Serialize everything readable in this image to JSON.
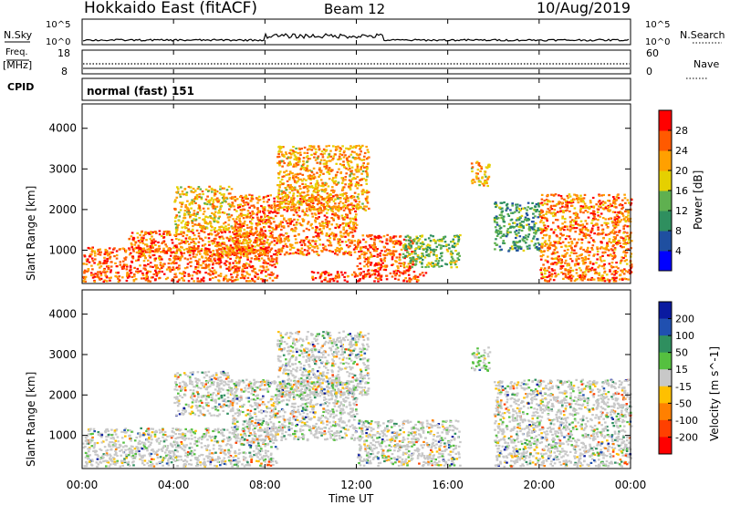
{
  "header": {
    "station": "Hokkaido East (fitACF)",
    "beam": "Beam 12",
    "date": "10/Aug/2019"
  },
  "info": {
    "nsky_label": "N.Sky",
    "nsky_ticks": [
      "10^5",
      "10^0"
    ],
    "nsearch_label": "N.Search",
    "freq_label_1": "Freq.",
    "freq_label_2": "[MHz]",
    "freq_ticks": [
      "18",
      "8"
    ],
    "nave_label": "Nave",
    "nave_ticks": [
      "60",
      "0"
    ],
    "cpid_label": "CPID",
    "cpid_text": "normal (fast) 151"
  },
  "chart_data": [
    {
      "type": "heatmap",
      "title": "",
      "xlabel": "Time UT",
      "ylabel": "Slant Range [km]",
      "x_ticks": [
        "00:00",
        "04:00",
        "08:00",
        "12:00",
        "16:00",
        "20:00",
        "00:00"
      ],
      "xlim_hours": [
        0,
        24
      ],
      "y_ticks": [
        1000,
        2000,
        3000,
        4000
      ],
      "ylim_km": [
        180,
        4600
      ],
      "colorbar": {
        "label": "Power [dB]",
        "ticks": [
          4,
          8,
          12,
          16,
          20,
          24,
          28
        ],
        "range": [
          0,
          32
        ],
        "colors": [
          "#0000ff",
          "#1f4fa0",
          "#2f8f5f",
          "#5fb050",
          "#e5d000",
          "#ffa000",
          "#ff5a00",
          "#ff0000"
        ]
      },
      "regions": [
        {
          "t0": 0.0,
          "t1": 8.5,
          "r0": 250,
          "r1": 1100,
          "level": 0.85
        },
        {
          "t0": 2.0,
          "t1": 8.0,
          "r0": 900,
          "r1": 1500,
          "level": 0.8
        },
        {
          "t0": 4.0,
          "t1": 6.5,
          "r0": 1500,
          "r1": 2600,
          "level": 0.65
        },
        {
          "t0": 6.5,
          "t1": 12.0,
          "r0": 900,
          "r1": 2400,
          "level": 0.8
        },
        {
          "t0": 8.5,
          "t1": 12.5,
          "r0": 2000,
          "r1": 3600,
          "level": 0.7
        },
        {
          "t0": 10.0,
          "t1": 15.0,
          "r0": 250,
          "r1": 500,
          "level": 0.9
        },
        {
          "t0": 12.0,
          "t1": 14.5,
          "r0": 500,
          "r1": 1400,
          "level": 0.85
        },
        {
          "t0": 14.0,
          "t1": 16.5,
          "r0": 600,
          "r1": 1400,
          "level": 0.45
        },
        {
          "t0": 17.0,
          "t1": 17.8,
          "r0": 2600,
          "r1": 3200,
          "level": 0.7
        },
        {
          "t0": 18.0,
          "t1": 20.0,
          "r0": 1000,
          "r1": 2200,
          "level": 0.35
        },
        {
          "t0": 20.0,
          "t1": 24.0,
          "r0": 250,
          "r1": 2400,
          "level": 0.8
        }
      ]
    },
    {
      "type": "heatmap",
      "title": "",
      "xlabel": "Time UT",
      "ylabel": "Slant Range [km]",
      "x_ticks": [
        "00:00",
        "04:00",
        "08:00",
        "12:00",
        "16:00",
        "20:00",
        "00:00"
      ],
      "xlim_hours": [
        0,
        24
      ],
      "y_ticks": [
        1000,
        2000,
        3000,
        4000
      ],
      "ylim_km": [
        180,
        4600
      ],
      "colorbar": {
        "label": "Velocity [m s^-1]",
        "ticks": [
          "200",
          "100",
          "50",
          "15",
          "-15",
          "-50",
          "-100",
          "-200"
        ],
        "colors": [
          "#0a1aa0",
          "#2050b0",
          "#2f8f5f",
          "#55c040",
          "#c8c8c8",
          "#ffc000",
          "#ff8000",
          "#ff4000",
          "#ff0000"
        ]
      },
      "regions": [
        {
          "t0": 0.0,
          "t1": 8.5,
          "r0": 250,
          "r1": 1200,
          "level": 0.5
        },
        {
          "t0": 4.0,
          "t1": 6.5,
          "r0": 1500,
          "r1": 2600,
          "level": 0.5
        },
        {
          "t0": 6.5,
          "t1": 12.0,
          "r0": 900,
          "r1": 2400,
          "level": 0.5
        },
        {
          "t0": 8.5,
          "t1": 12.5,
          "r0": 2000,
          "r1": 3600,
          "level": 0.5
        },
        {
          "t0": 12.0,
          "t1": 16.5,
          "r0": 250,
          "r1": 1400,
          "level": 0.5
        },
        {
          "t0": 17.0,
          "t1": 17.8,
          "r0": 2600,
          "r1": 3200,
          "level": 0.42
        },
        {
          "t0": 18.0,
          "t1": 24.0,
          "r0": 250,
          "r1": 2400,
          "level": 0.5
        }
      ]
    }
  ]
}
